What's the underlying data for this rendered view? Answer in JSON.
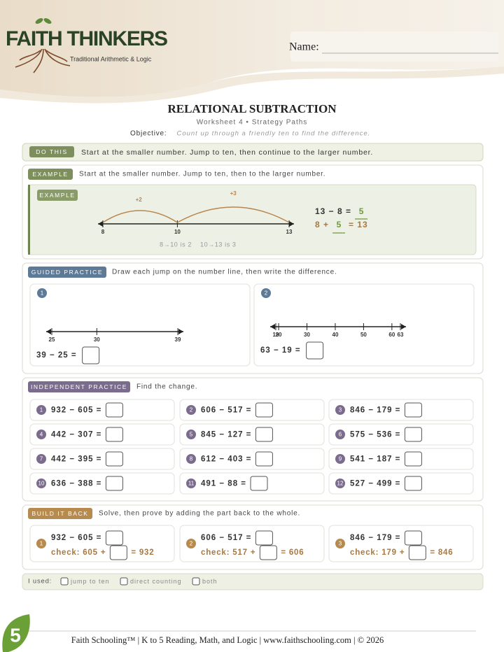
{
  "header": {
    "brand": "FAITH THINKERS",
    "tagline": "Traditional Arithmetic & Logic",
    "name_label": "Name:"
  },
  "title": "RELATIONAL SUBTRACTION",
  "subtitle": "Worksheet 4 • Strategy Paths",
  "objective": {
    "label": "Objective:",
    "text": "Count up through a friendly ten to find the difference."
  },
  "do_this": {
    "label": "DO THIS",
    "text": "Start at the smaller number. Jump to ten, then continue to the larger number."
  },
  "example": {
    "label": "EXAMPLE",
    "text": "Start at the smaller number. Jump to ten, then to the larger number.",
    "card_label": "EXAMPLE",
    "number_line": {
      "ticks": [
        8,
        10,
        13
      ]
    },
    "jumps": [
      "+2",
      "+3"
    ],
    "equation": {
      "line1": "13 − 8 =",
      "answer": "5",
      "line2_left": "8 +",
      "line2_answer": "5",
      "line2_right": "= 13"
    },
    "notes": [
      "8→10 is 2",
      "10→13 is 3"
    ]
  },
  "guided": {
    "label": "GUIDED PRACTICE",
    "text": "Draw each jump on the number line, then write the difference.",
    "problems": [
      {
        "number": "1",
        "number_line": {
          "ticks": [
            25,
            30,
            39
          ]
        },
        "expression": "39 − 25 ="
      },
      {
        "number": "2",
        "number_line": {
          "ticks": [
            19,
            20,
            30,
            40,
            50,
            60,
            63
          ]
        },
        "expression": "63 − 19 ="
      }
    ]
  },
  "independent": {
    "label": "INDEPENDENT PRACTICE",
    "text": "Find the change.",
    "problems": [
      {
        "number": "1",
        "expression": "932 − 605 ="
      },
      {
        "number": "2",
        "expression": "606 − 517 ="
      },
      {
        "number": "3",
        "expression": "846 − 179 ="
      },
      {
        "number": "4",
        "expression": "442 − 307 ="
      },
      {
        "number": "5",
        "expression": "845 − 127 ="
      },
      {
        "number": "6",
        "expression": "575 − 536 ="
      },
      {
        "number": "7",
        "expression": "442 − 395 ="
      },
      {
        "number": "8",
        "expression": "612 − 403 ="
      },
      {
        "number": "9",
        "expression": "541 − 187 ="
      },
      {
        "number": "10",
        "expression": "636 − 388 ="
      },
      {
        "number": "11",
        "expression": "491 − 88 ="
      },
      {
        "number": "12",
        "expression": "527 − 499 ="
      }
    ]
  },
  "build_back": {
    "label": "BUILD IT BACK",
    "text": "Solve, then prove by adding the part back to the whole.",
    "problems": [
      {
        "number": "1",
        "expression": "932 − 605 =",
        "check_left": "check: 605 +",
        "check_right": "= 932"
      },
      {
        "number": "2",
        "expression": "606 − 517 =",
        "check_left": "check: 517 +",
        "check_right": "= 606"
      },
      {
        "number": "3",
        "expression": "846 − 179 =",
        "check_left": "check: 179 +",
        "check_right": "= 846"
      }
    ]
  },
  "used": {
    "label": "I used:",
    "options": [
      "jump to ten",
      "direct counting",
      "both"
    ]
  },
  "footer": {
    "text": "Faith Schooling™ | K to 5 Reading, Math, and Logic | www.faithschooling.com | © 2026",
    "badge": "5"
  }
}
